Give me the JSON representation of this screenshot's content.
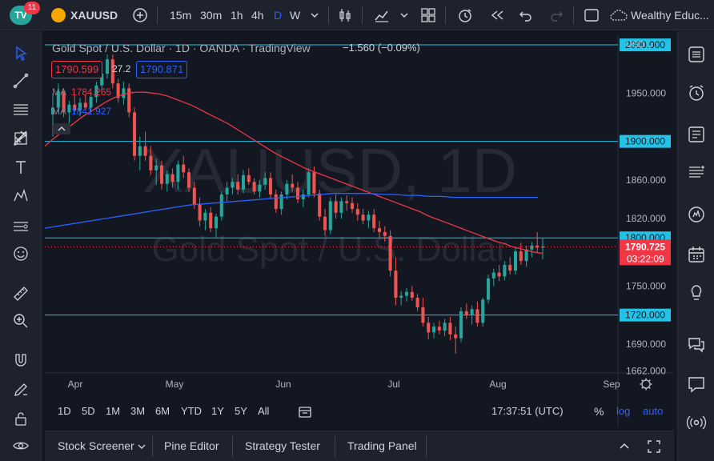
{
  "notifications": "11",
  "toolbar": {
    "symbol": "XAUUSD",
    "intervals": [
      "15m",
      "30m",
      "1h",
      "4h",
      "D",
      "W"
    ],
    "active_interval": "D",
    "account": "Wealthy Educ..."
  },
  "legend": {
    "title": "Gold Spot / U.S. Dollar · 1D · OANDA · TradingView",
    "change": "−1.560 (−0.09%)",
    "sell_price": "1790.599",
    "spread": "27.2",
    "buy_price": "1790.871",
    "ma1_label": "MA",
    "ma1_value": "1784.265",
    "ma2_label": "MA",
    "ma2_value": "1841.927"
  },
  "watermark": {
    "symbol": "XAUUSD, 1D",
    "description": "Gold Spot / U.S. Dollar"
  },
  "axis": {
    "currency": "USD",
    "price_ticks": [
      "1950.000",
      "1860.000",
      "1820.000",
      "1750.000",
      "1690.000",
      "1662.000"
    ],
    "h_lines": [
      "2000.000",
      "1900.000",
      "1800.000",
      "1720.000"
    ],
    "last_price": "1790.725",
    "countdown": "03:22:09",
    "months": [
      "Apr",
      "May",
      "Jun",
      "Jul",
      "Aug",
      "Sep"
    ]
  },
  "colors": {
    "up": "#26a69a",
    "down": "#ef5350",
    "ma_red": "#f23645",
    "ma_blue": "#2962ff",
    "hline": "#22c3e6",
    "accent": "#2962ff"
  },
  "chart_data": {
    "type": "candlestick",
    "price_range": [
      1660,
      2010
    ],
    "candles": [
      {
        "o": 1928,
        "h": 1950,
        "l": 1905,
        "c": 1935
      },
      {
        "o": 1935,
        "h": 1960,
        "l": 1930,
        "c": 1952
      },
      {
        "o": 1952,
        "h": 1955,
        "l": 1925,
        "c": 1930
      },
      {
        "o": 1930,
        "h": 1942,
        "l": 1918,
        "c": 1938
      },
      {
        "o": 1938,
        "h": 1948,
        "l": 1930,
        "c": 1932
      },
      {
        "o": 1932,
        "h": 1945,
        "l": 1926,
        "c": 1940
      },
      {
        "o": 1940,
        "h": 1948,
        "l": 1933,
        "c": 1935
      },
      {
        "o": 1935,
        "h": 1950,
        "l": 1930,
        "c": 1946
      },
      {
        "o": 1946,
        "h": 1962,
        "l": 1940,
        "c": 1958
      },
      {
        "o": 1958,
        "h": 1976,
        "l": 1952,
        "c": 1970
      },
      {
        "o": 1970,
        "h": 1990,
        "l": 1965,
        "c": 1985
      },
      {
        "o": 1985,
        "h": 1990,
        "l": 1955,
        "c": 1960
      },
      {
        "o": 1960,
        "h": 1965,
        "l": 1940,
        "c": 1945
      },
      {
        "o": 1945,
        "h": 1962,
        "l": 1938,
        "c": 1955
      },
      {
        "o": 1955,
        "h": 1960,
        "l": 1925,
        "c": 1930
      },
      {
        "o": 1930,
        "h": 1935,
        "l": 1880,
        "c": 1885
      },
      {
        "o": 1885,
        "h": 1905,
        "l": 1870,
        "c": 1895
      },
      {
        "o": 1895,
        "h": 1910,
        "l": 1880,
        "c": 1885
      },
      {
        "o": 1885,
        "h": 1895,
        "l": 1865,
        "c": 1870
      },
      {
        "o": 1870,
        "h": 1882,
        "l": 1855,
        "c": 1875
      },
      {
        "o": 1875,
        "h": 1880,
        "l": 1850,
        "c": 1856
      },
      {
        "o": 1856,
        "h": 1870,
        "l": 1848,
        "c": 1866
      },
      {
        "o": 1866,
        "h": 1872,
        "l": 1852,
        "c": 1858
      },
      {
        "o": 1858,
        "h": 1880,
        "l": 1850,
        "c": 1876
      },
      {
        "o": 1876,
        "h": 1885,
        "l": 1862,
        "c": 1868
      },
      {
        "o": 1868,
        "h": 1872,
        "l": 1848,
        "c": 1852
      },
      {
        "o": 1852,
        "h": 1858,
        "l": 1830,
        "c": 1835
      },
      {
        "o": 1835,
        "h": 1842,
        "l": 1812,
        "c": 1818
      },
      {
        "o": 1818,
        "h": 1830,
        "l": 1808,
        "c": 1826
      },
      {
        "o": 1826,
        "h": 1832,
        "l": 1806,
        "c": 1810
      },
      {
        "o": 1810,
        "h": 1825,
        "l": 1800,
        "c": 1822
      },
      {
        "o": 1822,
        "h": 1848,
        "l": 1818,
        "c": 1845
      },
      {
        "o": 1845,
        "h": 1858,
        "l": 1838,
        "c": 1852
      },
      {
        "o": 1852,
        "h": 1862,
        "l": 1845,
        "c": 1858
      },
      {
        "o": 1858,
        "h": 1866,
        "l": 1845,
        "c": 1850
      },
      {
        "o": 1850,
        "h": 1870,
        "l": 1846,
        "c": 1865
      },
      {
        "o": 1865,
        "h": 1872,
        "l": 1855,
        "c": 1858
      },
      {
        "o": 1858,
        "h": 1862,
        "l": 1845,
        "c": 1848
      },
      {
        "o": 1848,
        "h": 1860,
        "l": 1842,
        "c": 1855
      },
      {
        "o": 1855,
        "h": 1868,
        "l": 1850,
        "c": 1862
      },
      {
        "o": 1862,
        "h": 1868,
        "l": 1840,
        "c": 1845
      },
      {
        "o": 1845,
        "h": 1850,
        "l": 1826,
        "c": 1830
      },
      {
        "o": 1830,
        "h": 1848,
        "l": 1824,
        "c": 1845
      },
      {
        "o": 1845,
        "h": 1860,
        "l": 1840,
        "c": 1856
      },
      {
        "o": 1856,
        "h": 1866,
        "l": 1848,
        "c": 1852
      },
      {
        "o": 1852,
        "h": 1858,
        "l": 1836,
        "c": 1840
      },
      {
        "o": 1840,
        "h": 1850,
        "l": 1832,
        "c": 1845
      },
      {
        "o": 1845,
        "h": 1872,
        "l": 1842,
        "c": 1868
      },
      {
        "o": 1868,
        "h": 1874,
        "l": 1842,
        "c": 1846
      },
      {
        "o": 1846,
        "h": 1850,
        "l": 1818,
        "c": 1822
      },
      {
        "o": 1822,
        "h": 1830,
        "l": 1802,
        "c": 1808
      },
      {
        "o": 1808,
        "h": 1842,
        "l": 1804,
        "c": 1838
      },
      {
        "o": 1838,
        "h": 1845,
        "l": 1820,
        "c": 1826
      },
      {
        "o": 1826,
        "h": 1842,
        "l": 1820,
        "c": 1838
      },
      {
        "o": 1838,
        "h": 1844,
        "l": 1828,
        "c": 1836
      },
      {
        "o": 1836,
        "h": 1842,
        "l": 1826,
        "c": 1830
      },
      {
        "o": 1830,
        "h": 1836,
        "l": 1818,
        "c": 1824
      },
      {
        "o": 1824,
        "h": 1830,
        "l": 1814,
        "c": 1818
      },
      {
        "o": 1818,
        "h": 1828,
        "l": 1810,
        "c": 1824
      },
      {
        "o": 1824,
        "h": 1830,
        "l": 1806,
        "c": 1810
      },
      {
        "o": 1810,
        "h": 1818,
        "l": 1800,
        "c": 1806
      },
      {
        "o": 1806,
        "h": 1812,
        "l": 1796,
        "c": 1802
      },
      {
        "o": 1802,
        "h": 1808,
        "l": 1760,
        "c": 1766
      },
      {
        "o": 1766,
        "h": 1780,
        "l": 1730,
        "c": 1738
      },
      {
        "o": 1738,
        "h": 1745,
        "l": 1730,
        "c": 1740
      },
      {
        "o": 1740,
        "h": 1748,
        "l": 1734,
        "c": 1744
      },
      {
        "o": 1744,
        "h": 1750,
        "l": 1735,
        "c": 1738
      },
      {
        "o": 1738,
        "h": 1742,
        "l": 1724,
        "c": 1728
      },
      {
        "o": 1728,
        "h": 1738,
        "l": 1708,
        "c": 1712
      },
      {
        "o": 1712,
        "h": 1718,
        "l": 1695,
        "c": 1702
      },
      {
        "o": 1702,
        "h": 1712,
        "l": 1696,
        "c": 1708
      },
      {
        "o": 1708,
        "h": 1714,
        "l": 1700,
        "c": 1704
      },
      {
        "o": 1704,
        "h": 1716,
        "l": 1698,
        "c": 1712
      },
      {
        "o": 1712,
        "h": 1718,
        "l": 1694,
        "c": 1700
      },
      {
        "o": 1700,
        "h": 1708,
        "l": 1680,
        "c": 1696
      },
      {
        "o": 1696,
        "h": 1728,
        "l": 1692,
        "c": 1724
      },
      {
        "o": 1724,
        "h": 1732,
        "l": 1716,
        "c": 1720
      },
      {
        "o": 1720,
        "h": 1730,
        "l": 1710,
        "c": 1726
      },
      {
        "o": 1726,
        "h": 1734,
        "l": 1708,
        "c": 1712
      },
      {
        "o": 1712,
        "h": 1738,
        "l": 1708,
        "c": 1736
      },
      {
        "o": 1736,
        "h": 1762,
        "l": 1732,
        "c": 1758
      },
      {
        "o": 1758,
        "h": 1768,
        "l": 1750,
        "c": 1764
      },
      {
        "o": 1764,
        "h": 1772,
        "l": 1755,
        "c": 1760
      },
      {
        "o": 1760,
        "h": 1776,
        "l": 1756,
        "c": 1772
      },
      {
        "o": 1772,
        "h": 1780,
        "l": 1762,
        "c": 1766
      },
      {
        "o": 1766,
        "h": 1790,
        "l": 1762,
        "c": 1786
      },
      {
        "o": 1786,
        "h": 1795,
        "l": 1772,
        "c": 1776
      },
      {
        "o": 1776,
        "h": 1792,
        "l": 1770,
        "c": 1788
      },
      {
        "o": 1788,
        "h": 1796,
        "l": 1780,
        "c": 1792
      },
      {
        "o": 1792,
        "h": 1806,
        "l": 1785,
        "c": 1790
      },
      {
        "o": 1790,
        "h": 1800,
        "l": 1778,
        "c": 1791
      }
    ],
    "ma_red": [
      1895,
      1902,
      1908,
      1914,
      1920,
      1926,
      1931,
      1936,
      1941,
      1945,
      1948,
      1950,
      1951,
      1951,
      1950,
      1949,
      1947,
      1944,
      1941,
      1938,
      1934,
      1930,
      1926,
      1922,
      1918,
      1913,
      1908,
      1903,
      1898,
      1893,
      1888,
      1884,
      1880,
      1876,
      1872,
      1869,
      1866,
      1863,
      1860,
      1857,
      1854,
      1851,
      1848,
      1845,
      1842,
      1839,
      1836,
      1833,
      1830,
      1827,
      1823,
      1820,
      1817,
      1814,
      1811,
      1808,
      1805,
      1802,
      1799,
      1796,
      1794,
      1791,
      1789,
      1787,
      1785,
      1784
    ],
    "ma_blue": [
      1810,
      1812,
      1814,
      1816,
      1818,
      1820,
      1822,
      1824,
      1826,
      1828,
      1830,
      1832,
      1834,
      1835,
      1836,
      1837,
      1838,
      1839,
      1840,
      1841,
      1842,
      1843,
      1844,
      1845,
      1846,
      1846,
      1846,
      1846,
      1845,
      1845,
      1844,
      1844,
      1843,
      1843,
      1842,
      1842,
      1842,
      1842,
      1842,
      1842,
      1842,
      1842
    ]
  },
  "time_footer": {
    "ranges": [
      "1D",
      "5D",
      "1M",
      "3M",
      "6M",
      "YTD",
      "1Y",
      "5Y",
      "All"
    ],
    "clock": "17:37:51 (UTC)",
    "percent": "%",
    "log": "log",
    "auto": "auto"
  },
  "bottom_tabs": [
    "Stock Screener",
    "Pine Editor",
    "Strategy Tester",
    "Trading Panel"
  ]
}
